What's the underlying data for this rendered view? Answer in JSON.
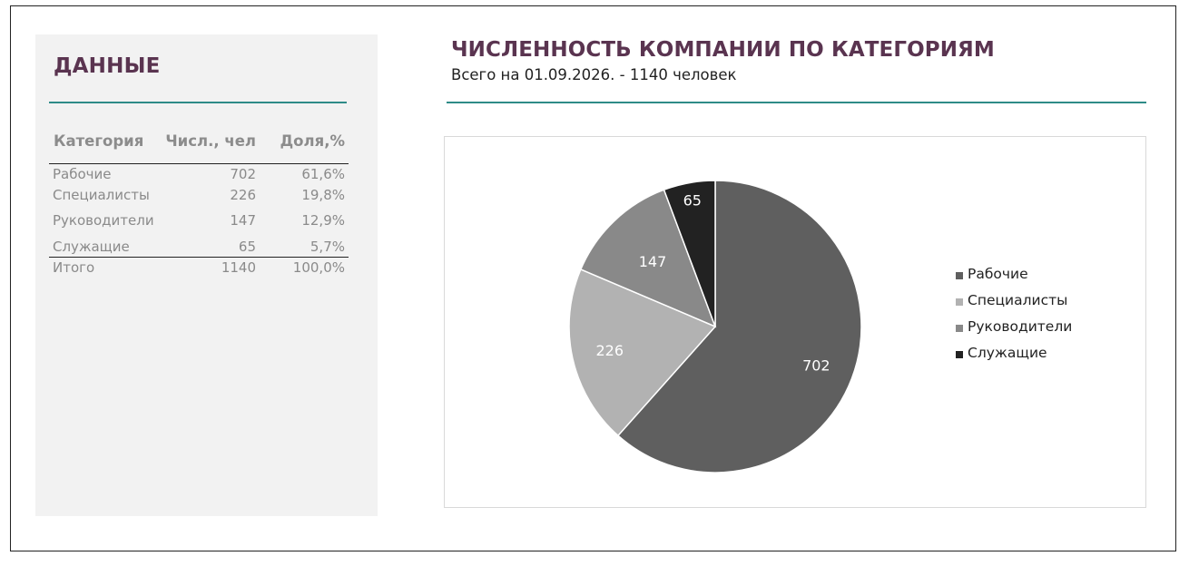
{
  "panel": {
    "title": "ДАННЫЕ",
    "headers": [
      "Категория",
      "Числ., чел",
      "Доля,%"
    ],
    "rows": [
      {
        "category": "Рабочие",
        "count": "702",
        "share": "61,6%"
      },
      {
        "category": "Специалисты",
        "count": "226",
        "share": "19,8%"
      },
      {
        "category": "Руководители",
        "count": "147",
        "share": "12,9%"
      },
      {
        "category": "Служащие",
        "count": "65",
        "share": "5,7%"
      }
    ],
    "total": {
      "category": "Итого",
      "count": "1140",
      "share": "100,0%"
    }
  },
  "chart_data": {
    "type": "pie",
    "title": "ЧИСЛЕННОСТЬ КОМПАНИИ ПО КАТЕГОРИЯМ",
    "subtitle": "Всего на 01.09.2026. - 1140 человек",
    "categories": [
      "Рабочие",
      "Специалисты",
      "Руководители",
      "Служащие"
    ],
    "values": [
      702,
      226,
      147,
      65
    ],
    "colors": [
      "#5f5f5f",
      "#b2b2b2",
      "#898989",
      "#222222"
    ],
    "label_colors": [
      "#ffffff",
      "#ffffff",
      "#ffffff",
      "#ffffff"
    ],
    "start_angle_deg": 0,
    "direction": "clockwise",
    "legend": "right"
  },
  "colors": {
    "title": "#5a3450",
    "rule": "#2e8b87",
    "panel_bg": "#f2f2f2"
  }
}
